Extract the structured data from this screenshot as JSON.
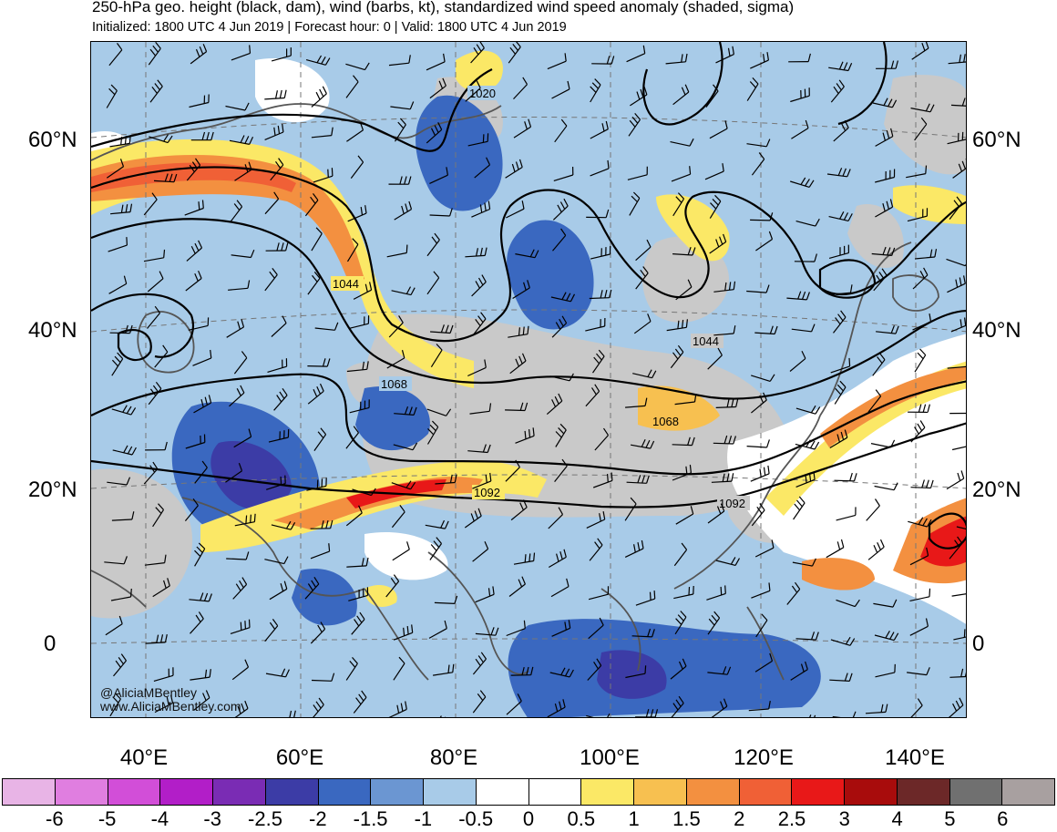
{
  "header": {
    "title": "250-hPa geo. height (black, dam), wind (barbs, kt), standardized wind speed anomaly (shaded, sigma)",
    "subtitle": "Initialized: 1800 UTC 4 Jun 2019 | Forecast hour: 0 | Valid: 1800 UTC 4 Jun 2019"
  },
  "map": {
    "lat_labels": [
      "60°N",
      "40°N",
      "20°N",
      "0"
    ],
    "lon_labels": [
      "40°E",
      "60°E",
      "80°E",
      "100°E",
      "120°E",
      "140°E"
    ],
    "contour_labels": [
      "1020",
      "1044",
      "1044",
      "1068",
      "1068",
      "1092",
      "1092"
    ],
    "credits": {
      "handle": "@AliciaMBentley",
      "website": "www.AliciaMBentley.com"
    }
  },
  "colorbar": {
    "colors": [
      "#e8b4e6",
      "#e07ee0",
      "#d24ed8",
      "#b21ec8",
      "#7a2cb4",
      "#3c3ca6",
      "#3a68c0",
      "#6b96d2",
      "#a8cbe8",
      "#ffffff",
      "#ffffff",
      "#fbe866",
      "#f7c050",
      "#f39040",
      "#f06036",
      "#e81818",
      "#a80c0c",
      "#6c2828",
      "#707070",
      "#a8a0a0"
    ],
    "labels": [
      "-6",
      "-5",
      "-4",
      "-3",
      "-2.5",
      "-2",
      "-1.5",
      "-1",
      "-0.5",
      "0",
      "0.5",
      "1",
      "1.5",
      "2",
      "2.5",
      "3",
      "4",
      "5",
      "6"
    ]
  }
}
